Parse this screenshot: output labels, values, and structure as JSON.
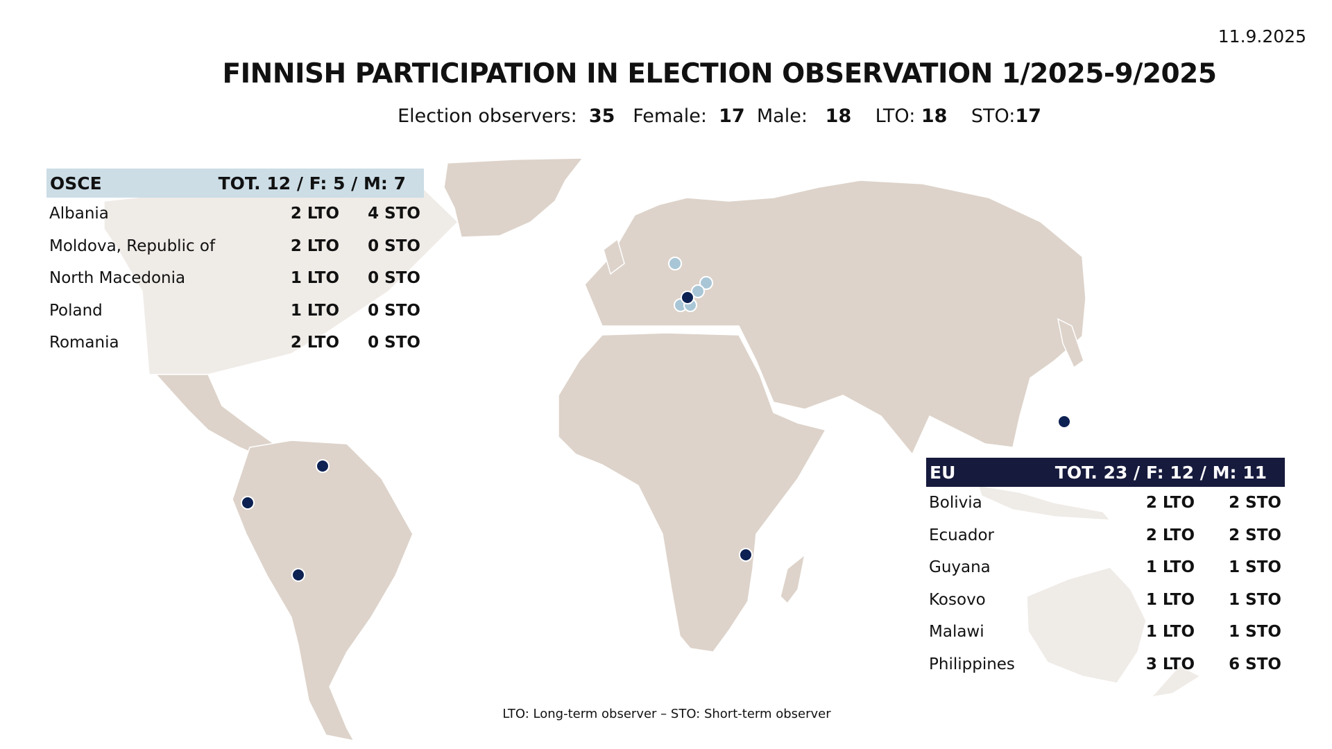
{
  "date": "11.9.2025",
  "title": "FINNISH PARTICIPATION IN ELECTION OBSERVATION 1/2025-9/2025",
  "summary": {
    "observers_label": "Election observers:",
    "observers": "35",
    "female_label": "Female:",
    "female": "17",
    "male_label": "Male:",
    "male": "18",
    "lto_label": "LTO:",
    "lto": "18",
    "sto_label": "STO:",
    "sto": "17"
  },
  "osce": {
    "label": "OSCE",
    "totals": "TOT. 12 / F: 5 / M: 7",
    "color": "#ccdde6",
    "rows": [
      {
        "country": "Albania",
        "lto": "2 LTO",
        "sto": "4 STO"
      },
      {
        "country": "Moldova, Republic of",
        "lto": "2 LTO",
        "sto": "0 STO"
      },
      {
        "country": "North Macedonia",
        "lto": "1 LTO",
        "sto": "0 STO"
      },
      {
        "country": "Poland",
        "lto": "1 LTO",
        "sto": "0 STO"
      },
      {
        "country": "Romania",
        "lto": "2 LTO",
        "sto": "0 STO"
      }
    ]
  },
  "eu": {
    "label": "EU",
    "totals": "TOT. 23 / F: 12 / M: 11",
    "color": "#161a3c",
    "rows": [
      {
        "country": "Bolivia",
        "lto": "2 LTO",
        "sto": "2 STO"
      },
      {
        "country": "Ecuador",
        "lto": "2 LTO",
        "sto": "2 STO"
      },
      {
        "country": "Guyana",
        "lto": "1 LTO",
        "sto": "1 STO"
      },
      {
        "country": "Kosovo",
        "lto": "1 LTO",
        "sto": "1 STO"
      },
      {
        "country": "Malawi",
        "lto": "1 LTO",
        "sto": "1 STO"
      },
      {
        "country": "Philippines",
        "lto": "3 LTO",
        "sto": "6 STO"
      }
    ]
  },
  "footer": "LTO: Long-term observer – STO: Short-term observer",
  "map_colors": {
    "land": "#ddd3ca",
    "land_faded": "#efebe7",
    "osce_marker": "#a9c6d6",
    "eu_marker": "#0d2152"
  },
  "markers": [
    {
      "country": "Poland",
      "org": "OSCE"
    },
    {
      "country": "Moldova",
      "org": "OSCE"
    },
    {
      "country": "Romania",
      "org": "OSCE"
    },
    {
      "country": "Albania",
      "org": "OSCE"
    },
    {
      "country": "North Macedonia",
      "org": "OSCE"
    },
    {
      "country": "Kosovo",
      "org": "EU"
    },
    {
      "country": "Philippines",
      "org": "EU"
    },
    {
      "country": "Guyana",
      "org": "EU"
    },
    {
      "country": "Ecuador",
      "org": "EU"
    },
    {
      "country": "Bolivia",
      "org": "EU"
    },
    {
      "country": "Malawi",
      "org": "EU"
    }
  ]
}
